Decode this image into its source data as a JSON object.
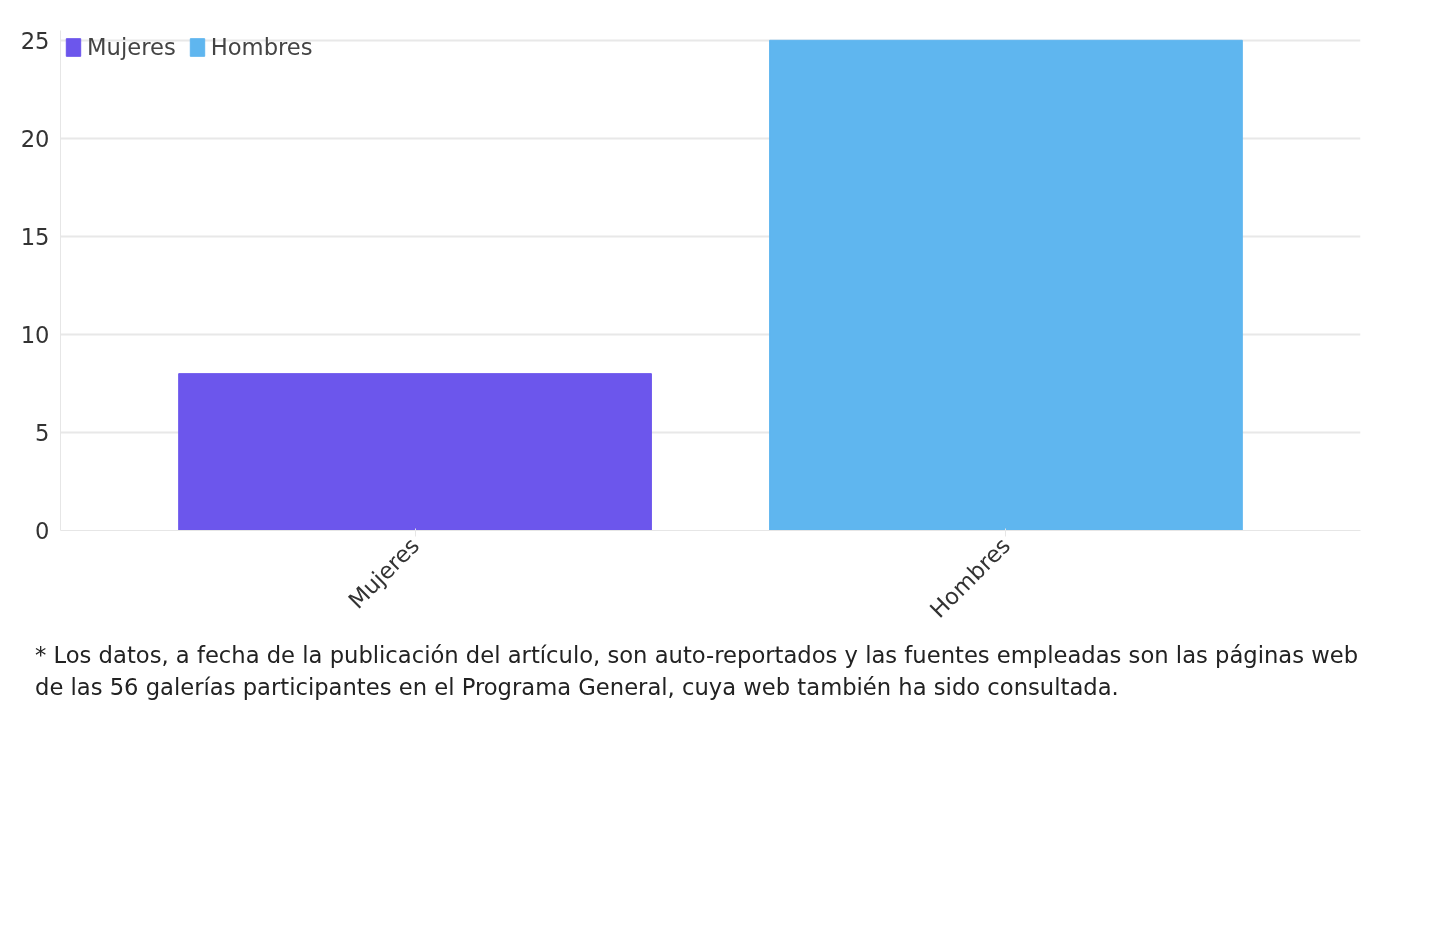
{
  "chart_data": {
    "type": "bar",
    "categories": [
      "Mujeres",
      "Hombres"
    ],
    "series": [
      {
        "name": "Mujeres",
        "color": "#6c56ec",
        "values": [
          8,
          null
        ]
      },
      {
        "name": "Hombres",
        "color": "#5fb6ef",
        "values": [
          null,
          25
        ]
      }
    ],
    "ylim": [
      0,
      25.5
    ],
    "yticks": [
      0,
      5,
      10,
      15,
      20,
      25
    ],
    "grid": "y",
    "legend": "top left",
    "annotations": [
      "* Los datos, a fecha de la publicación del artículo, son auto-reportados y las fuentes empleadas son las páginas web de las 56 galerías participantes en el Programa General, cuya web también ha sido consultada."
    ]
  }
}
